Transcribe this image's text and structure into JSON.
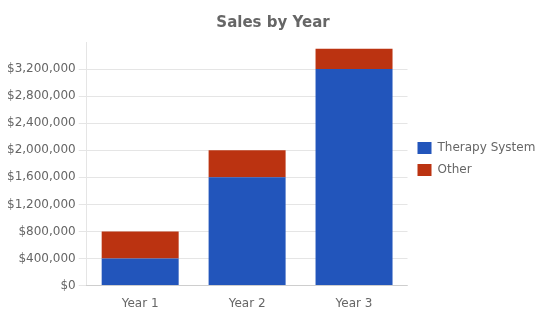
{
  "chart_data": {
    "type": "bar",
    "title": "Sales by Year",
    "categories": [
      "Year 1",
      "Year 2",
      "Year 3"
    ],
    "series": [
      {
        "name": "Therapy System",
        "color": "#2255BB",
        "values": [
          400000,
          1600000,
          3200000
        ]
      },
      {
        "name": "Other",
        "color": "#BB3311",
        "values": [
          400000,
          400000,
          300000
        ]
      }
    ],
    "stacked": true,
    "ylim": [
      0,
      3600000
    ],
    "yticks": [
      {
        "value": 0,
        "label": "$0"
      },
      {
        "value": 400000,
        "label": "$400,000"
      },
      {
        "value": 800000,
        "label": "$800,000"
      },
      {
        "value": 1200000,
        "label": "$1,200,000"
      },
      {
        "value": 1600000,
        "label": "$1,600,000"
      },
      {
        "value": 2000000,
        "label": "$2,000,000"
      },
      {
        "value": 2400000,
        "label": "$2,400,000"
      },
      {
        "value": 2800000,
        "label": "$2,800,000"
      },
      {
        "value": 3200000,
        "label": "$3,200,000"
      }
    ],
    "grid": true,
    "legend": "right"
  }
}
